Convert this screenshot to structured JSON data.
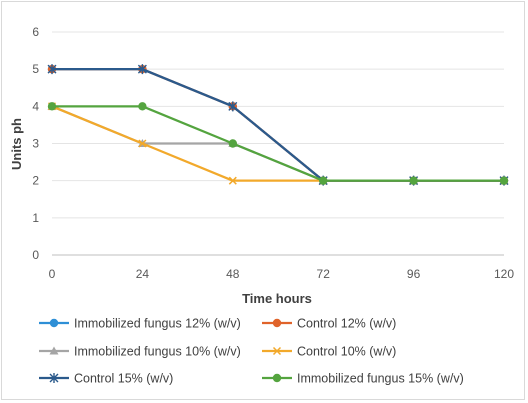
{
  "chart_data": {
    "type": "line",
    "xlabel": "Time hours",
    "ylabel": "Units ph",
    "x": [
      0,
      24,
      48,
      72,
      96,
      120
    ],
    "xlim": [
      0,
      120
    ],
    "ylim": [
      0,
      6
    ],
    "yticks": [
      0,
      1,
      2,
      3,
      4,
      5,
      6
    ],
    "grid": "horizontal",
    "legend_position": "bottom",
    "series": [
      {
        "name": "Immobilized fungus 12% (w/v)",
        "color": "#2e8fd6",
        "marker": "circle",
        "values": [
          5,
          5,
          4,
          2,
          2,
          2
        ]
      },
      {
        "name": "Control 12% (w/v)",
        "color": "#e0632a",
        "marker": "circle",
        "values": [
          5,
          5,
          4,
          2,
          2,
          2
        ]
      },
      {
        "name": "Immobilized fungus 10% (w/v)",
        "color": "#a5a5a5",
        "marker": "triangle",
        "values": [
          4,
          3,
          3,
          2,
          2,
          2
        ]
      },
      {
        "name": "Control 10% (w/v)",
        "color": "#f2a92b",
        "marker": "x",
        "values": [
          4,
          3,
          2,
          2,
          2,
          2
        ]
      },
      {
        "name": "Control 15% (w/v)",
        "color": "#2b5a8c",
        "marker": "star",
        "values": [
          5,
          5,
          4,
          2,
          2,
          2
        ]
      },
      {
        "name": "Immobilized fungus 15% (w/v)",
        "color": "#54a43f",
        "marker": "circle",
        "values": [
          4,
          4,
          3,
          2,
          2,
          2
        ]
      }
    ]
  }
}
